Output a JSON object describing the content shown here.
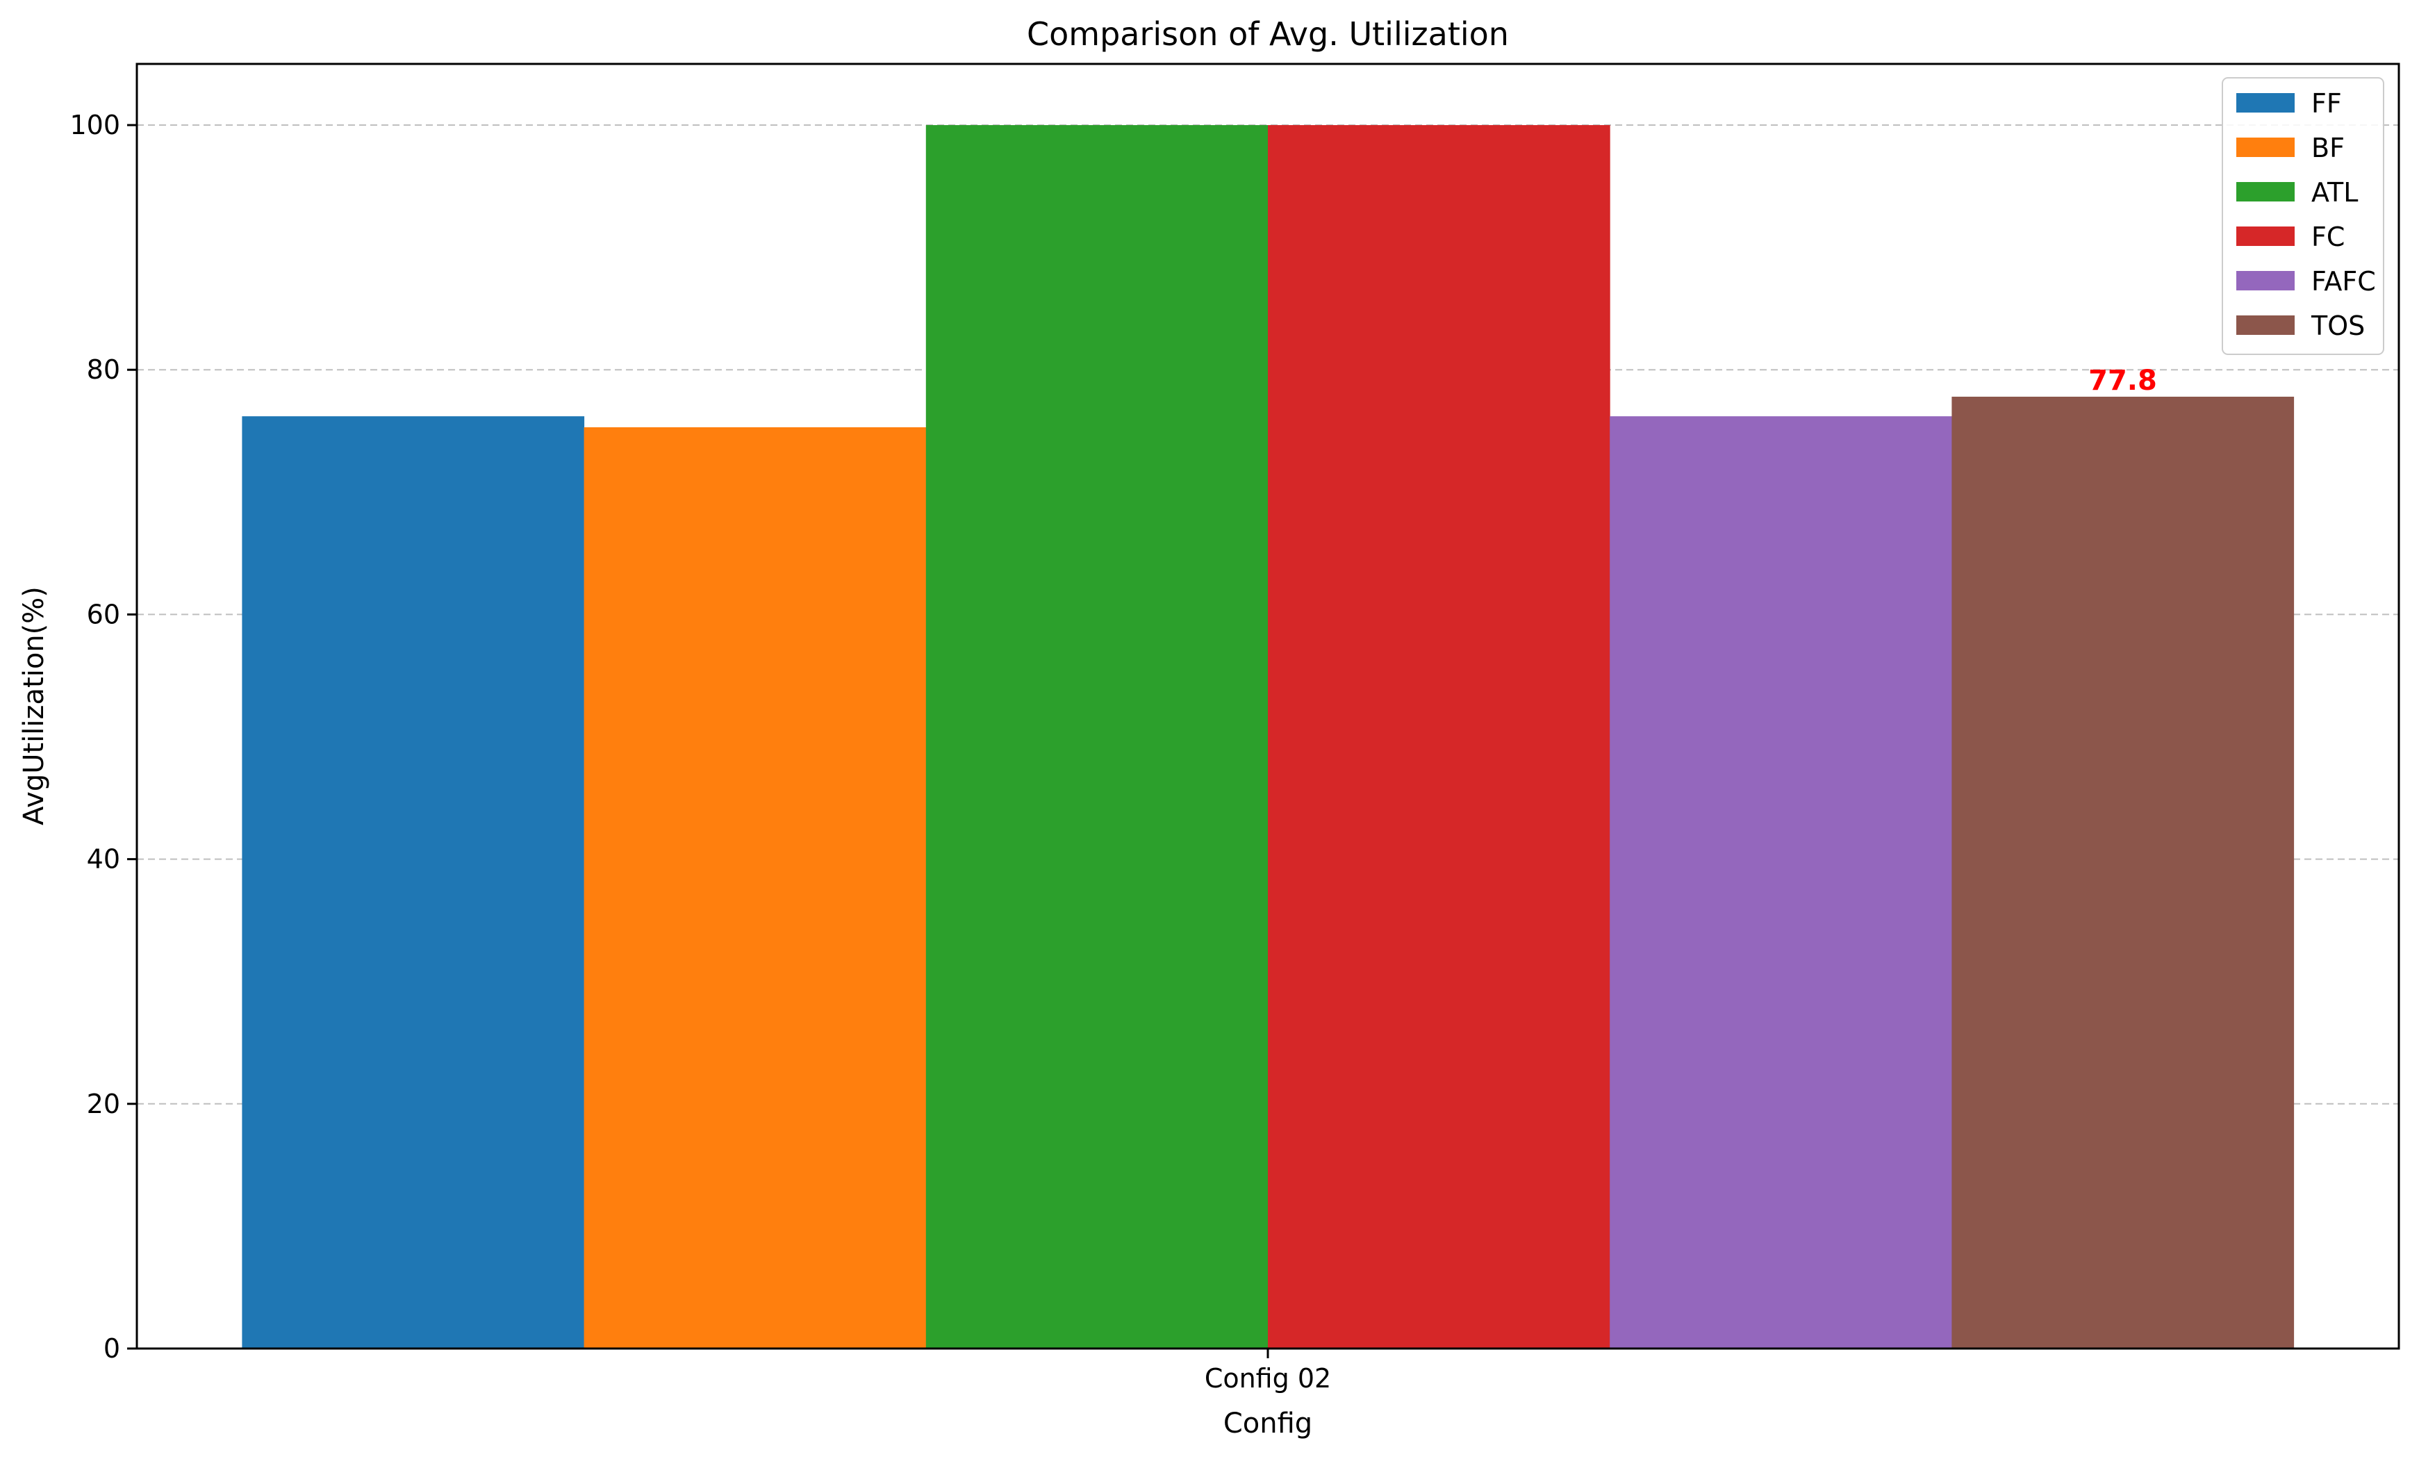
{
  "chart_data": {
    "type": "bar",
    "title": "Comparison of Avg. Utilization",
    "xlabel": "Config",
    "ylabel": "AvgUtilization(%)",
    "categories": [
      "Config 02"
    ],
    "ylim": [
      0,
      105
    ],
    "yticks": [
      0,
      20,
      40,
      60,
      80,
      100
    ],
    "grid": "y, dashed",
    "legend_position": "top-right",
    "series": [
      {
        "name": "FF",
        "values": [
          76.2
        ],
        "color": "#1f77b4"
      },
      {
        "name": "BF",
        "values": [
          75.3
        ],
        "color": "#ff7f0e"
      },
      {
        "name": "ATL",
        "values": [
          100.0
        ],
        "color": "#2ca02c"
      },
      {
        "name": "FC",
        "values": [
          100.0
        ],
        "color": "#d62728"
      },
      {
        "name": "FAFC",
        "values": [
          76.2
        ],
        "color": "#9467bd"
      },
      {
        "name": "TOS",
        "values": [
          77.8
        ],
        "color": "#8c564b"
      }
    ],
    "annotations": [
      {
        "series": "TOS",
        "category": "Config 02",
        "text": "77.8",
        "color": "#ff0000"
      }
    ]
  }
}
